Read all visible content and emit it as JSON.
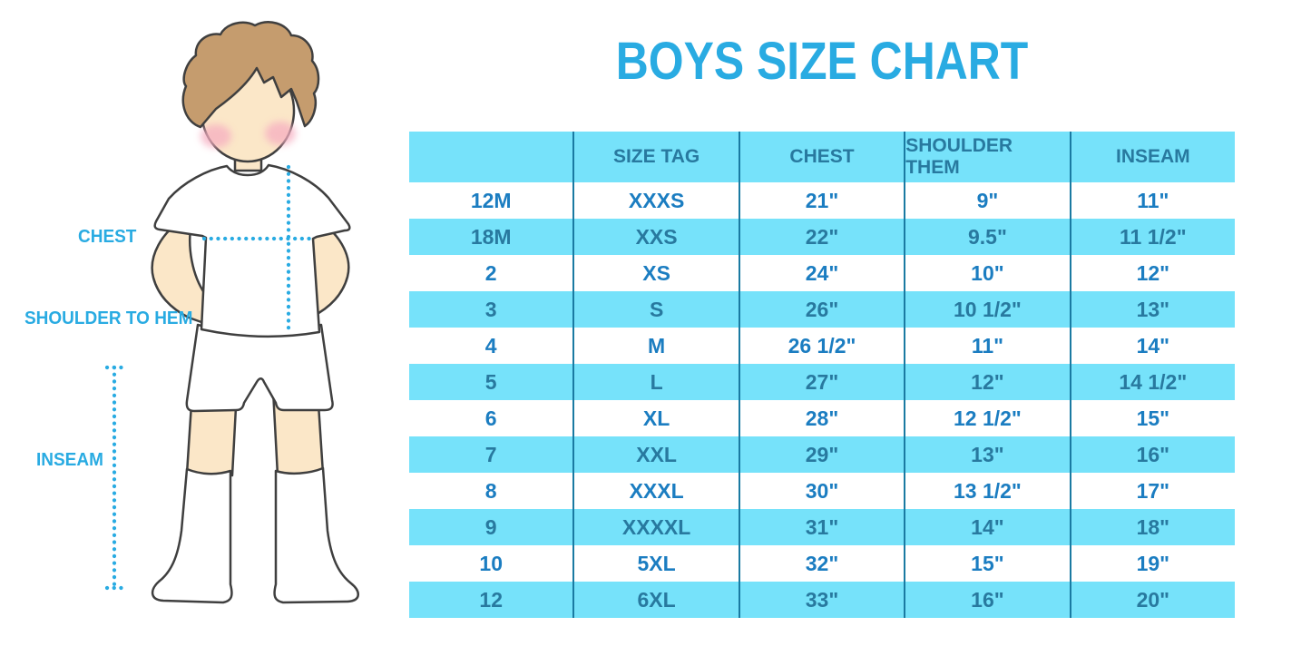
{
  "title": "BOYS SIZE CHART",
  "colors": {
    "accent_blue": "#29ABE2",
    "band_cyan": "#76E2FA",
    "divider_teal": "#1A7AA2",
    "text_on_white": "#1B7DC1",
    "text_on_cyan": "#28799F",
    "hair_brown": "#C59C6E",
    "skin": "#FBE7C8",
    "cheek_pink": "#F6AEC1"
  },
  "figure": {
    "labels": {
      "chest": "CHEST",
      "shoulder_to_hem": "SHOULDER TO HEM",
      "inseam": "INSEAM"
    }
  },
  "chart_data": {
    "type": "table",
    "title": "BOYS SIZE CHART",
    "columns": [
      "",
      "SIZE TAG",
      "CHEST",
      "SHOULDER THEM",
      "INSEAM"
    ],
    "rows": [
      [
        "12M",
        "XXXS",
        "21\"",
        "9\"",
        "11\""
      ],
      [
        "18M",
        "XXS",
        "22\"",
        "9.5\"",
        "11 1/2\""
      ],
      [
        "2",
        "XS",
        "24\"",
        "10\"",
        "12\""
      ],
      [
        "3",
        "S",
        "26\"",
        "10 1/2\"",
        "13\""
      ],
      [
        "4",
        "M",
        "26 1/2\"",
        "11\"",
        "14\""
      ],
      [
        "5",
        "L",
        "27\"",
        "12\"",
        "14 1/2\""
      ],
      [
        "6",
        "XL",
        "28\"",
        "12 1/2\"",
        "15\""
      ],
      [
        "7",
        "XXL",
        "29\"",
        "13\"",
        "16\""
      ],
      [
        "8",
        "XXXL",
        "30\"",
        "13 1/2\"",
        "17\""
      ],
      [
        "9",
        "XXXXL",
        "31\"",
        "14\"",
        "18\""
      ],
      [
        "10",
        "5XL",
        "32\"",
        "15\"",
        "19\""
      ],
      [
        "12",
        "6XL",
        "33\"",
        "16\"",
        "20\""
      ]
    ],
    "layout": {
      "row_banding": "alternating white and cyan, starting white",
      "grid": "vertical teal dividers between all 5 columns, no outer border"
    }
  }
}
